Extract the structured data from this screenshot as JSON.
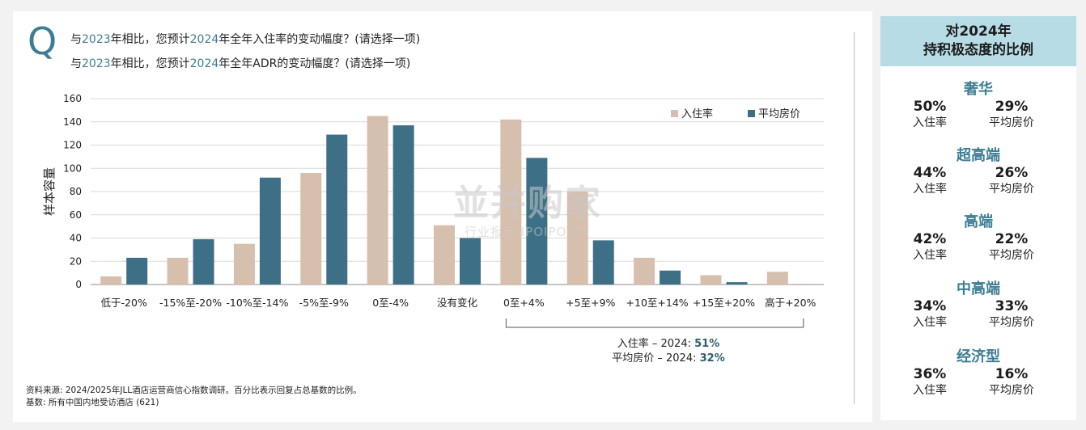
{
  "question": {
    "letter": "Q",
    "line1_pre": "与",
    "line1_year1": "2023",
    "line1_mid": "年相比，您预计",
    "line1_year2": "2024",
    "line1_post": "年全年入住率的变动幅度？(请选择一项)",
    "line2_pre": "与",
    "line2_year1": "2023",
    "line2_mid": "年相比，您预计",
    "line2_year2": "2024",
    "line2_post": "年全年ADR的变动幅度？(请选择一项)"
  },
  "chart_data": {
    "type": "bar",
    "ylabel": "样本容量",
    "ylim": [
      0,
      160
    ],
    "yticks": [
      0,
      20,
      40,
      60,
      80,
      100,
      120,
      140,
      160
    ],
    "grid": true,
    "legend_position": "top-right",
    "categories": [
      "低于-20%",
      "-15%至-20%",
      "-10%至-14%",
      "-5%至-9%",
      "0至-4%",
      "没有变化",
      "0至+4%",
      "+5至+9%",
      "+10至+14%",
      "+15至+20%",
      "高于+20%"
    ],
    "series": [
      {
        "name": "入住率",
        "color": "#d7bfae",
        "values": [
          7,
          23,
          35,
          96,
          145,
          51,
          142,
          80,
          23,
          8,
          11
        ]
      },
      {
        "name": "平均房价",
        "color": "#3d7086",
        "values": [
          23,
          39,
          92,
          129,
          137,
          40,
          109,
          38,
          12,
          2,
          0
        ]
      }
    ],
    "annotation": {
      "line1_label": "入住率 – 2024: ",
      "line1_value": "51%",
      "line2_label": "平均房价 – 2024: ",
      "line2_value": "32%"
    }
  },
  "source": {
    "line1": "资料来源: 2024/2025年JLL酒店运营商信心指数调研。百分比表示回复占总基数的比例。",
    "line2": "基数: 所有中国内地受访酒店 (621)"
  },
  "sidebar": {
    "title_line1": "对2024年",
    "title_line2": "持积极态度的比例",
    "segments": [
      {
        "name": "奢华",
        "occ": "50%",
        "occ_label": "入住率",
        "adr": "29%",
        "adr_label": "平均房价"
      },
      {
        "name": "超高端",
        "occ": "44%",
        "occ_label": "入住率",
        "adr": "26%",
        "adr_label": "平均房价"
      },
      {
        "name": "高端",
        "occ": "42%",
        "occ_label": "入住率",
        "adr": "22%",
        "adr_label": "平均房价"
      },
      {
        "name": "中高端",
        "occ": "34%",
        "occ_label": "入住率",
        "adr": "33%",
        "adr_label": "平均房价"
      },
      {
        "name": "经济型",
        "occ": "36%",
        "occ_label": "入住率",
        "adr": "16%",
        "adr_label": "平均房价"
      }
    ]
  },
  "watermark": {
    "text_big": "並并购家",
    "text_small": "行业报告 IPOIPO.CN"
  }
}
